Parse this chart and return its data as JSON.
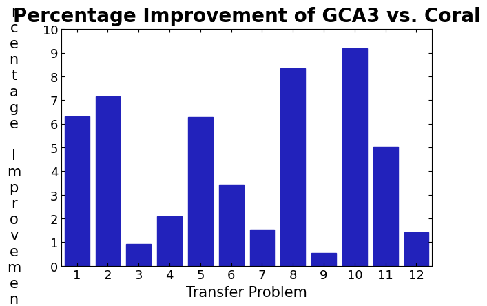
{
  "title": "Percentage Improvement of GCA3 vs. Coral",
  "xlabel": "Transfer Problem",
  "ylabel": "Percentage Improvement",
  "categories": [
    1,
    2,
    3,
    4,
    5,
    6,
    7,
    8,
    9,
    10,
    11,
    12
  ],
  "values": [
    6.3,
    7.15,
    0.92,
    2.08,
    6.28,
    3.42,
    1.52,
    8.35,
    0.55,
    9.2,
    5.02,
    1.42
  ],
  "bar_color": "#2222BB",
  "ylim": [
    0,
    10
  ],
  "yticks": [
    0,
    1,
    2,
    3,
    4,
    5,
    6,
    7,
    8,
    9,
    10
  ],
  "xticks": [
    1,
    2,
    3,
    4,
    5,
    6,
    7,
    8,
    9,
    10,
    11,
    12
  ],
  "title_fontsize": 20,
  "label_fontsize": 15,
  "tick_fontsize": 13
}
